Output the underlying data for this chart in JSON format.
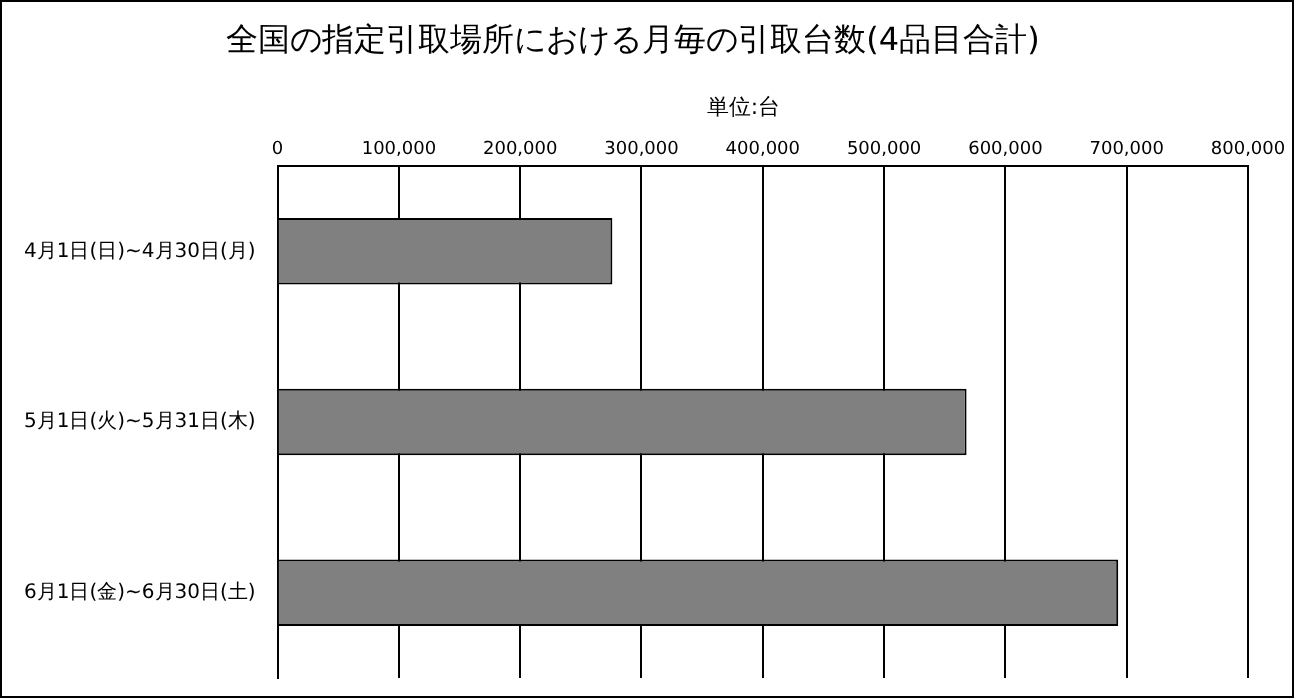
{
  "chart_data": {
    "type": "bar",
    "orientation": "horizontal",
    "title": "全国の指定引取場所における月毎の引取台数(4品目合計)",
    "annotations": [
      "単位:台"
    ],
    "categories": [
      "4月1日(日)~4月30日(月)",
      "5月1日(火)~5月31日(木)",
      "6月1日(金)~6月30日(土)"
    ],
    "values": [
      276000,
      568000,
      693000
    ],
    "color": "#808080",
    "xlim": [
      0,
      800000
    ],
    "xticks": [
      {
        "value": 0,
        "label": "0"
      },
      {
        "value": 100000,
        "label": "100,000"
      },
      {
        "value": 200000,
        "label": "200,000"
      },
      {
        "value": 300000,
        "label": "300,000"
      },
      {
        "value": 400000,
        "label": "400,000"
      },
      {
        "value": 500000,
        "label": "500,000"
      },
      {
        "value": 600000,
        "label": "600,000"
      },
      {
        "value": 700000,
        "label": "700,000"
      },
      {
        "value": 800000,
        "label": "800,000"
      }
    ],
    "grid": "x",
    "legend": false
  }
}
